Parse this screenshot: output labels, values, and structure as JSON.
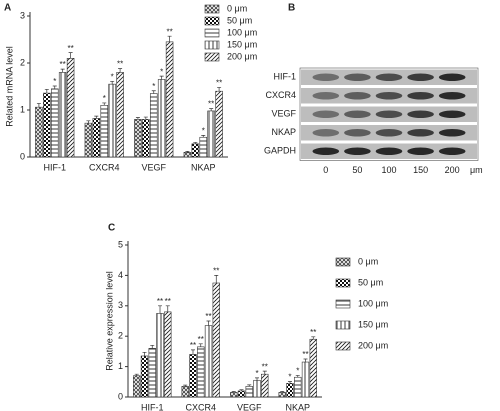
{
  "chart_data": [
    {
      "type": "bar",
      "panel_label": "A",
      "y_label": "Related mRNA level",
      "categories": [
        "HIF-1",
        "CXCR4",
        "VEGF",
        "NKAP"
      ],
      "ylim": [
        0,
        3
      ],
      "yticks": [
        0,
        1,
        2,
        3
      ],
      "series": [
        {
          "name": "0 μm",
          "color": "#444",
          "pattern": "cross",
          "values": [
            1.06,
            0.72,
            0.8,
            0.1
          ],
          "errors": [
            0.08,
            0.05,
            0.04,
            0.02
          ],
          "annotations": [
            null,
            null,
            null,
            null
          ]
        },
        {
          "name": "50 μm",
          "color": "#111",
          "pattern": "checker",
          "values": [
            1.36,
            0.82,
            0.8,
            0.28
          ],
          "errors": [
            0.08,
            0.05,
            0.05,
            0.03
          ],
          "annotations": [
            null,
            null,
            null,
            null
          ]
        },
        {
          "name": "100 μm",
          "color": "#222",
          "pattern": "horizontal",
          "values": [
            1.45,
            1.1,
            1.35,
            0.42
          ],
          "errors": [
            0.06,
            0.05,
            0.06,
            0.04
          ],
          "annotations": [
            "*",
            "*",
            "*",
            "*"
          ]
        },
        {
          "name": "150 μm",
          "color": "#222",
          "pattern": "vertical",
          "values": [
            1.8,
            1.55,
            1.65,
            0.98
          ],
          "errors": [
            0.07,
            0.06,
            0.07,
            0.05
          ],
          "annotations": [
            "**",
            "*",
            "*",
            "**"
          ]
        },
        {
          "name": "200 μm",
          "color": "#222",
          "pattern": "diagonal",
          "values": [
            2.1,
            1.8,
            2.45,
            1.4
          ],
          "errors": [
            0.12,
            0.08,
            0.12,
            0.08
          ],
          "annotations": [
            "**",
            "**",
            "**",
            "**"
          ]
        }
      ]
    },
    {
      "type": "bar",
      "panel_label": "C",
      "y_label": "Relative expression level",
      "categories": [
        "HIF-1",
        "CXCR4",
        "VEGF",
        "NKAP"
      ],
      "ylim": [
        0,
        5
      ],
      "yticks": [
        0,
        1,
        2,
        3,
        4,
        5
      ],
      "series": [
        {
          "name": "0 μm",
          "color": "#444",
          "pattern": "cross",
          "values": [
            0.7,
            0.35,
            0.15,
            0.15
          ],
          "errors": [
            0.05,
            0.04,
            0.03,
            0.03
          ],
          "annotations": [
            null,
            null,
            null,
            null
          ]
        },
        {
          "name": "50 μm",
          "color": "#111",
          "pattern": "checker",
          "values": [
            1.35,
            1.4,
            0.2,
            0.45
          ],
          "errors": [
            0.12,
            0.15,
            0.04,
            0.06
          ],
          "annotations": [
            null,
            "**",
            null,
            "*"
          ]
        },
        {
          "name": "100 μm",
          "color": "#222",
          "pattern": "horizontal",
          "values": [
            1.6,
            1.65,
            0.35,
            0.65
          ],
          "errors": [
            0.1,
            0.1,
            0.05,
            0.06
          ],
          "annotations": [
            null,
            "**",
            null,
            "*"
          ]
        },
        {
          "name": "150 μm",
          "color": "#222",
          "pattern": "vertical",
          "values": [
            2.75,
            2.35,
            0.55,
            1.15
          ],
          "errors": [
            0.25,
            0.15,
            0.08,
            0.1
          ],
          "annotations": [
            "**",
            "**",
            "*",
            "**"
          ]
        },
        {
          "name": "200 μm",
          "color": "#222",
          "pattern": "diagonal",
          "values": [
            2.8,
            3.75,
            0.75,
            1.9
          ],
          "errors": [
            0.2,
            0.25,
            0.1,
            0.08
          ],
          "annotations": [
            "**",
            "**",
            "**",
            "**"
          ]
        }
      ]
    }
  ],
  "blot": {
    "panel_label": "B",
    "rows": [
      "HIF-1",
      "CXCR4",
      "VEGF",
      "NKAP",
      "GAPDH"
    ],
    "lanes": [
      "0",
      "50",
      "100",
      "150",
      "200"
    ],
    "unit": "μm"
  }
}
